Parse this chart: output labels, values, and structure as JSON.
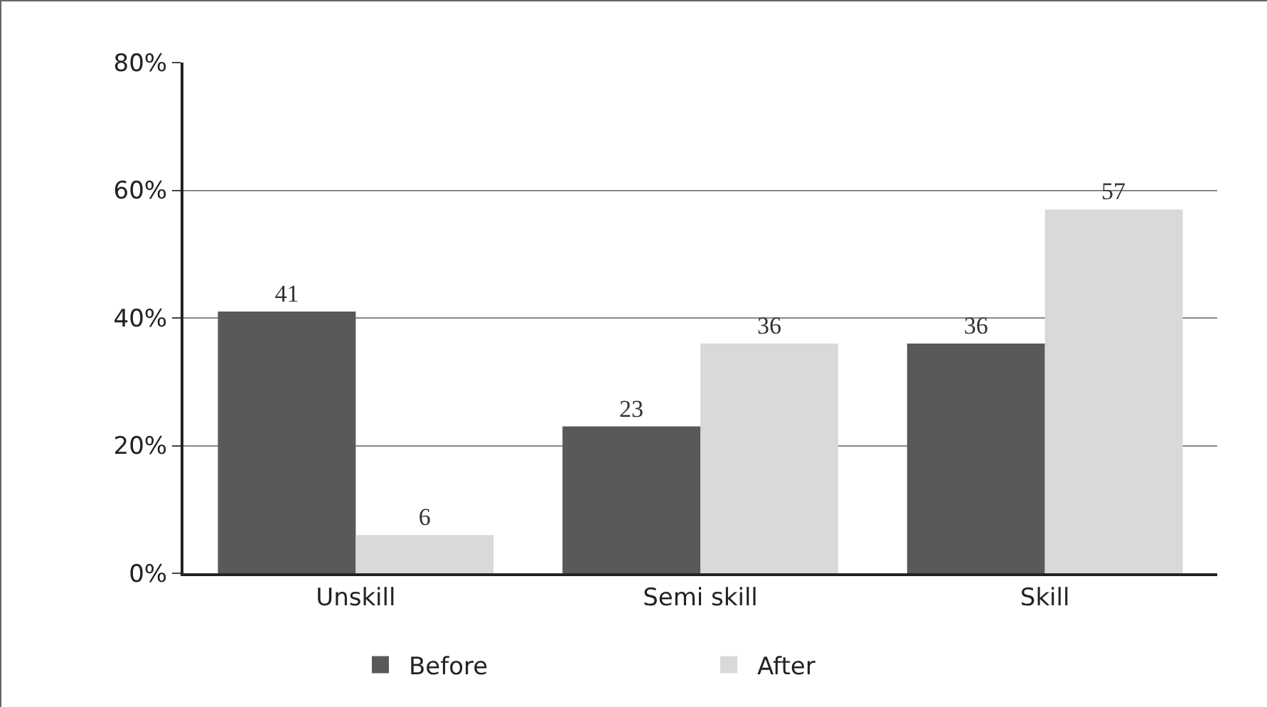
{
  "chart_data": {
    "type": "bar",
    "categories": [
      "Unskill",
      "Semi skill",
      "Skill"
    ],
    "series": [
      {
        "name": "Before",
        "color": "#595959",
        "values": [
          41,
          23,
          36
        ]
      },
      {
        "name": "After",
        "color": "#d9d9d9",
        "values": [
          6,
          36,
          57
        ]
      }
    ],
    "ylim": [
      0,
      80
    ],
    "yticks": [
      {
        "value": 0,
        "label": "0%"
      },
      {
        "value": 20,
        "label": "20%"
      },
      {
        "value": 40,
        "label": "40%"
      },
      {
        "value": 60,
        "label": "60%"
      },
      {
        "value": 80,
        "label": "80%"
      }
    ],
    "grid": "y",
    "legend": "bottom",
    "data_labels": true
  }
}
